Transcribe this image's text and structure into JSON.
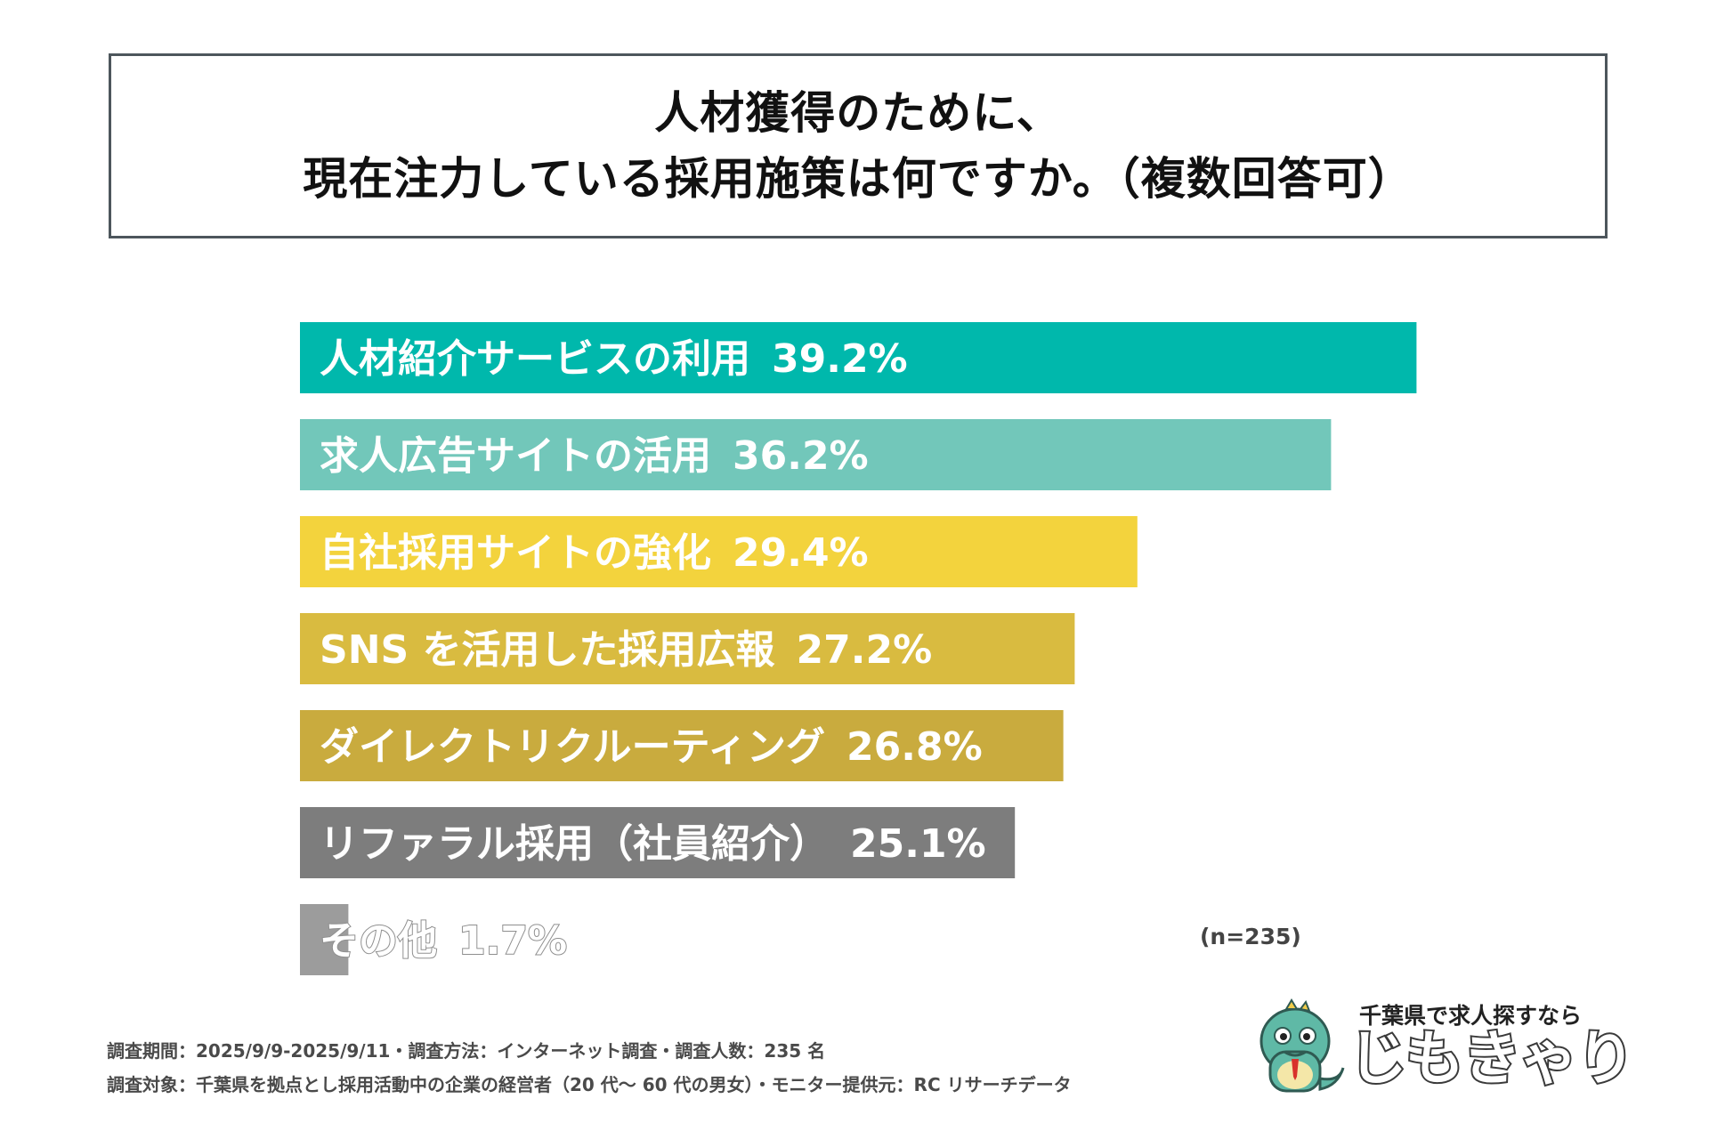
{
  "title": {
    "line1": "人材獲得のために、",
    "line2": "現在注力している採用施策は何ですか。（複数回答可）"
  },
  "chart_data": {
    "type": "bar",
    "orientation": "horizontal",
    "categories": [
      "人材紹介サービスの利用",
      "求人広告サイトの活用",
      "自社採用サイトの強化",
      "SNS を活用した採用広報",
      "ダイレクトリクルーティング",
      "リファラル採用（社員紹介）",
      "その他"
    ],
    "values": [
      39.2,
      36.2,
      29.4,
      27.2,
      26.8,
      25.1,
      1.7
    ],
    "value_labels": [
      "39.2%",
      "36.2%",
      "29.4%",
      "27.2%",
      "26.8%",
      "25.1%",
      "1.7%"
    ],
    "colors": [
      "#00b8ac",
      "#72c7ba",
      "#f3d33d",
      "#d9bb40",
      "#c9ab3e",
      "#7d7d7d",
      "#9c9c9c"
    ],
    "unit": "%",
    "xlim": [
      0,
      40
    ],
    "grid": false,
    "note": "(n=235)"
  },
  "footnotes": {
    "line1": "調査期間：2025/9/9-2025/9/11・調査方法：インターネット調査・調査人数：235 名",
    "line2": "調査対象：千葉県を拠点とし採用活動中の企業の経営者（20 代〜 60 代の男女）・モニター提供元：RC リサーチデータ"
  },
  "logo": {
    "tagline": "千葉県で求人探すなら",
    "wordmark": "じもきゃり",
    "accent_color": "#4fb3a0"
  }
}
